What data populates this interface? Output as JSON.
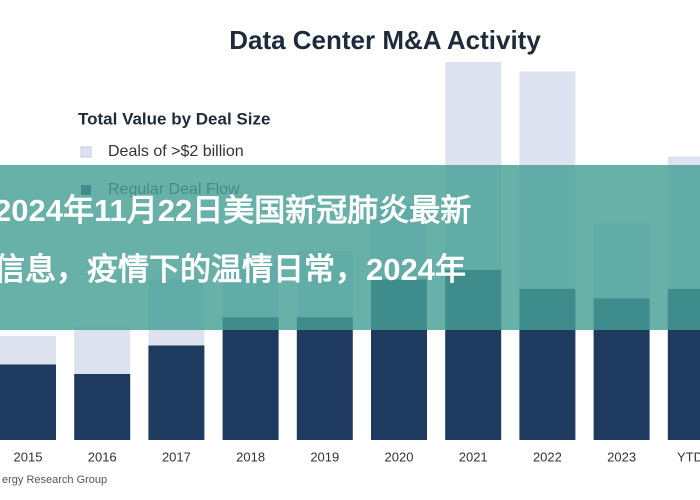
{
  "chart_data": {
    "type": "stacked-bar",
    "title": "Data Center M&A Activity",
    "legend_title": "Total Value by Deal Size",
    "categories": [
      "2015",
      "2016",
      "2017",
      "2018",
      "2019",
      "2020",
      "2021",
      "2022",
      "2023",
      "YTD A"
    ],
    "series": [
      {
        "name": "Regular Deal Flow",
        "color": "#1f3a5f",
        "values": [
          8,
          7,
          10,
          13,
          13,
          17,
          18,
          16,
          15,
          16
        ]
      },
      {
        "name": "Deals of >$2 billion",
        "color": "#dde3ee",
        "values": [
          3,
          5,
          7,
          6,
          7,
          8,
          22,
          23,
          8,
          14
        ]
      }
    ],
    "ylim": [
      0,
      40
    ],
    "source": "ergy Research Group"
  },
  "overlay": {
    "lines": [
      "2024年11月22日美国新冠肺炎最新",
      "信息，疫情下的温情日常，2024年"
    ]
  }
}
